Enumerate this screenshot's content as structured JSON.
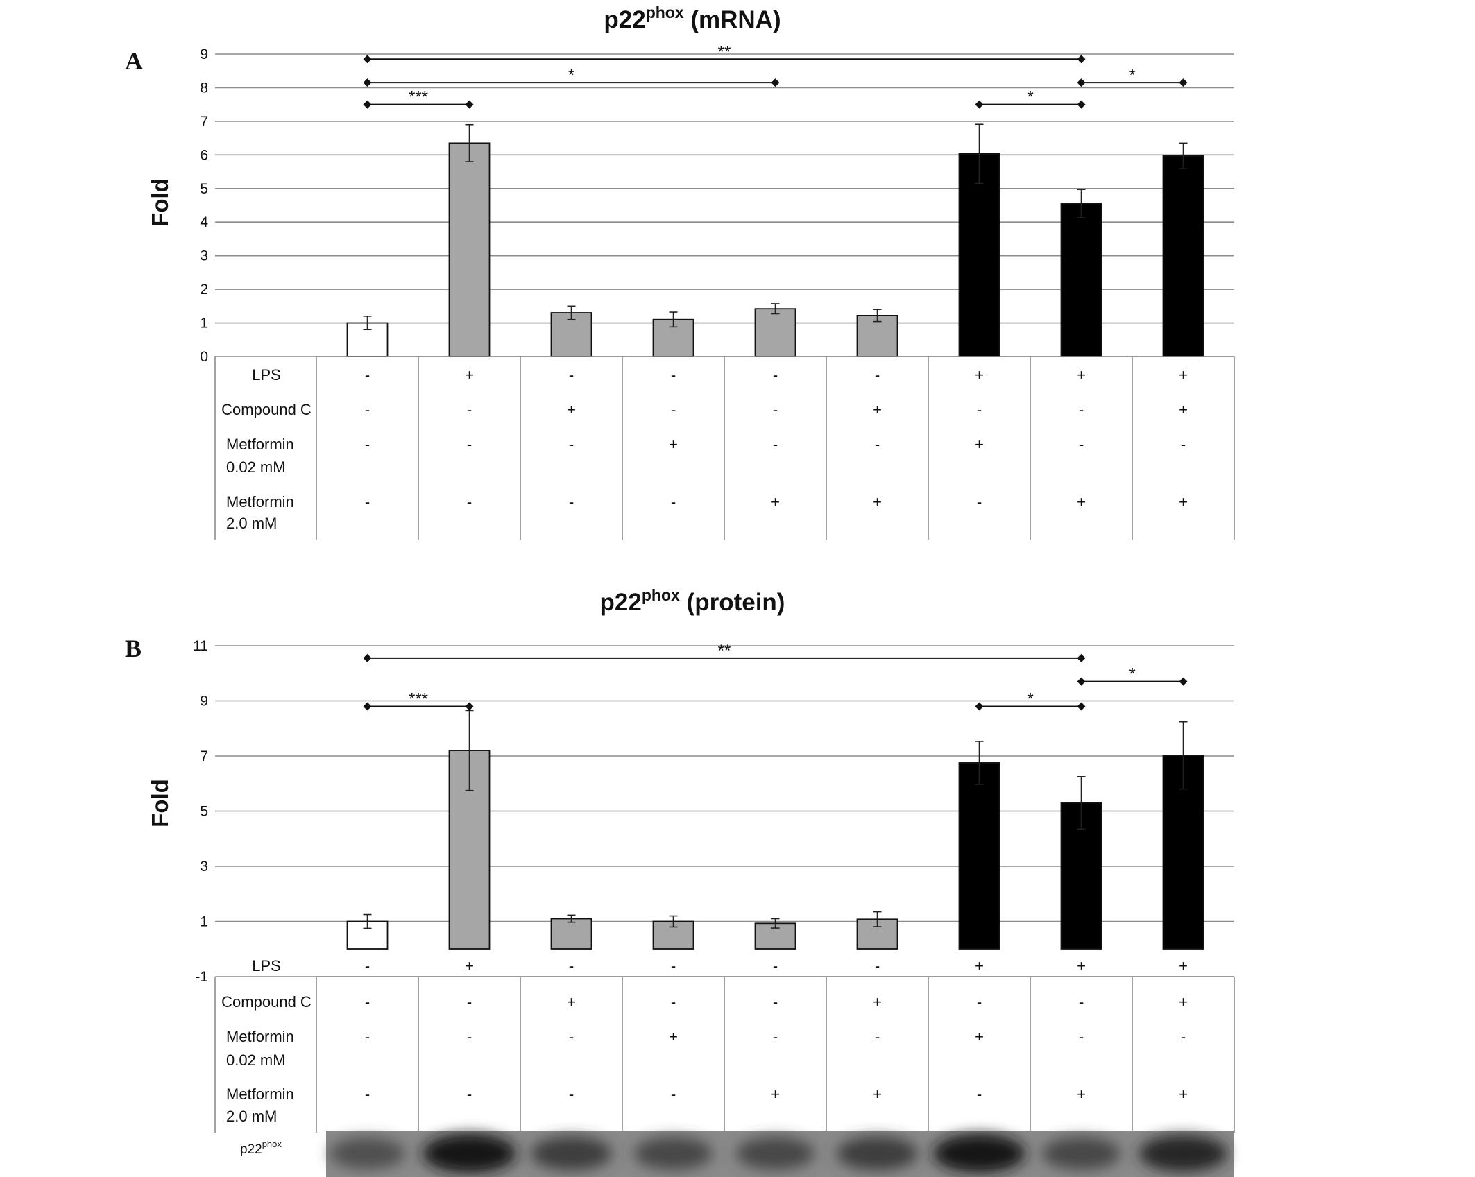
{
  "panel_a": {
    "letter": "A"
  },
  "panel_b": {
    "letter": "B"
  },
  "chart_data": [
    {
      "type": "bar",
      "panel": "A",
      "title": {
        "main": "p22",
        "sup": "phox",
        "rest": " (mRNA)"
      },
      "ylabel": "Fold",
      "ylim": [
        0,
        9
      ],
      "yticks": [
        "0",
        "1",
        "2",
        "3",
        "4",
        "5",
        "6",
        "7",
        "8",
        "9"
      ],
      "grid": true,
      "legend": "none",
      "values": [
        1.0,
        6.35,
        1.3,
        1.1,
        1.42,
        1.22,
        6.03,
        4.55,
        5.97
      ],
      "errors": [
        0.2,
        0.55,
        0.2,
        0.22,
        0.15,
        0.18,
        0.88,
        0.42,
        0.38
      ],
      "bar_colors": [
        "#ffffff",
        "#a6a6a6",
        "#a6a6a6",
        "#a6a6a6",
        "#a6a6a6",
        "#a6a6a6",
        "#000000",
        "#000000",
        "#000000"
      ],
      "treatment_rows": [
        {
          "label": [
            "LPS"
          ],
          "cells": [
            "-",
            "+",
            "-",
            "-",
            "-",
            "-",
            "+",
            "+",
            "+"
          ]
        },
        {
          "label": [
            "Compound C"
          ],
          "cells": [
            "-",
            "-",
            "+",
            "-",
            "-",
            "+",
            "-",
            "-",
            "+"
          ]
        },
        {
          "label": [
            "Metformin",
            "0.02 mM"
          ],
          "cells": [
            "-",
            "-",
            "-",
            "+",
            "-",
            "-",
            "+",
            "-",
            "-"
          ]
        },
        {
          "label": [
            "Metformin",
            "2.0 mM"
          ],
          "cells": [
            "-",
            "-",
            "-",
            "-",
            "+",
            "+",
            "-",
            "+",
            "+"
          ]
        }
      ],
      "significance": [
        {
          "from": 1,
          "to": 8,
          "y": 8.85,
          "label": "**"
        },
        {
          "from": 1,
          "to": 5,
          "y": 8.15,
          "label": "*"
        },
        {
          "from": 1,
          "to": 2,
          "y": 7.5,
          "label": "***"
        },
        {
          "from": 7,
          "to": 8,
          "y": 7.5,
          "label": "*"
        },
        {
          "from": 8,
          "to": 9,
          "y": 8.15,
          "label": "*"
        }
      ]
    },
    {
      "type": "bar",
      "panel": "B",
      "title": {
        "main": "p22",
        "sup": "phox",
        "rest": " (protein)"
      },
      "ylabel": "Fold",
      "ylim": [
        -1,
        11
      ],
      "yticks": [
        "-1",
        "1",
        "3",
        "5",
        "7",
        "9",
        "11"
      ],
      "grid": true,
      "legend": "none",
      "values": [
        1.0,
        7.2,
        1.1,
        1.0,
        0.93,
        1.08,
        6.75,
        5.3,
        7.02
      ],
      "errors": [
        0.25,
        1.45,
        0.13,
        0.2,
        0.17,
        0.27,
        0.78,
        0.95,
        1.22
      ],
      "bar_colors": [
        "#ffffff",
        "#a6a6a6",
        "#a6a6a6",
        "#a6a6a6",
        "#a6a6a6",
        "#a6a6a6",
        "#000000",
        "#000000",
        "#000000"
      ],
      "treatment_rows": [
        {
          "label": [
            "LPS"
          ],
          "cells": [
            "-",
            "+",
            "-",
            "-",
            "-",
            "-",
            "+",
            "+",
            "+"
          ]
        },
        {
          "label": [
            "Compound C"
          ],
          "cells": [
            "-",
            "-",
            "+",
            "-",
            "-",
            "+",
            "-",
            "-",
            "+"
          ]
        },
        {
          "label": [
            "Metformin",
            "0.02 mM"
          ],
          "cells": [
            "-",
            "-",
            "-",
            "+",
            "-",
            "-",
            "+",
            "-",
            "-"
          ]
        },
        {
          "label": [
            "Metformin",
            "2.0 mM"
          ],
          "cells": [
            "-",
            "-",
            "-",
            "-",
            "+",
            "+",
            "-",
            "+",
            "+"
          ]
        }
      ],
      "significance": [
        {
          "from": 1,
          "to": 8,
          "y": 10.55,
          "label": "**"
        },
        {
          "from": 1,
          "to": 2,
          "y": 8.8,
          "label": "***"
        },
        {
          "from": 7,
          "to": 8,
          "y": 8.8,
          "label": "*"
        },
        {
          "from": 8,
          "to": 9,
          "y": 9.7,
          "label": "*"
        }
      ]
    }
  ],
  "blot": {
    "label_main": "p22",
    "label_sup": "phox",
    "band_intensity": [
      0.35,
      1.0,
      0.55,
      0.45,
      0.45,
      0.55,
      0.95,
      0.45,
      0.8
    ]
  }
}
